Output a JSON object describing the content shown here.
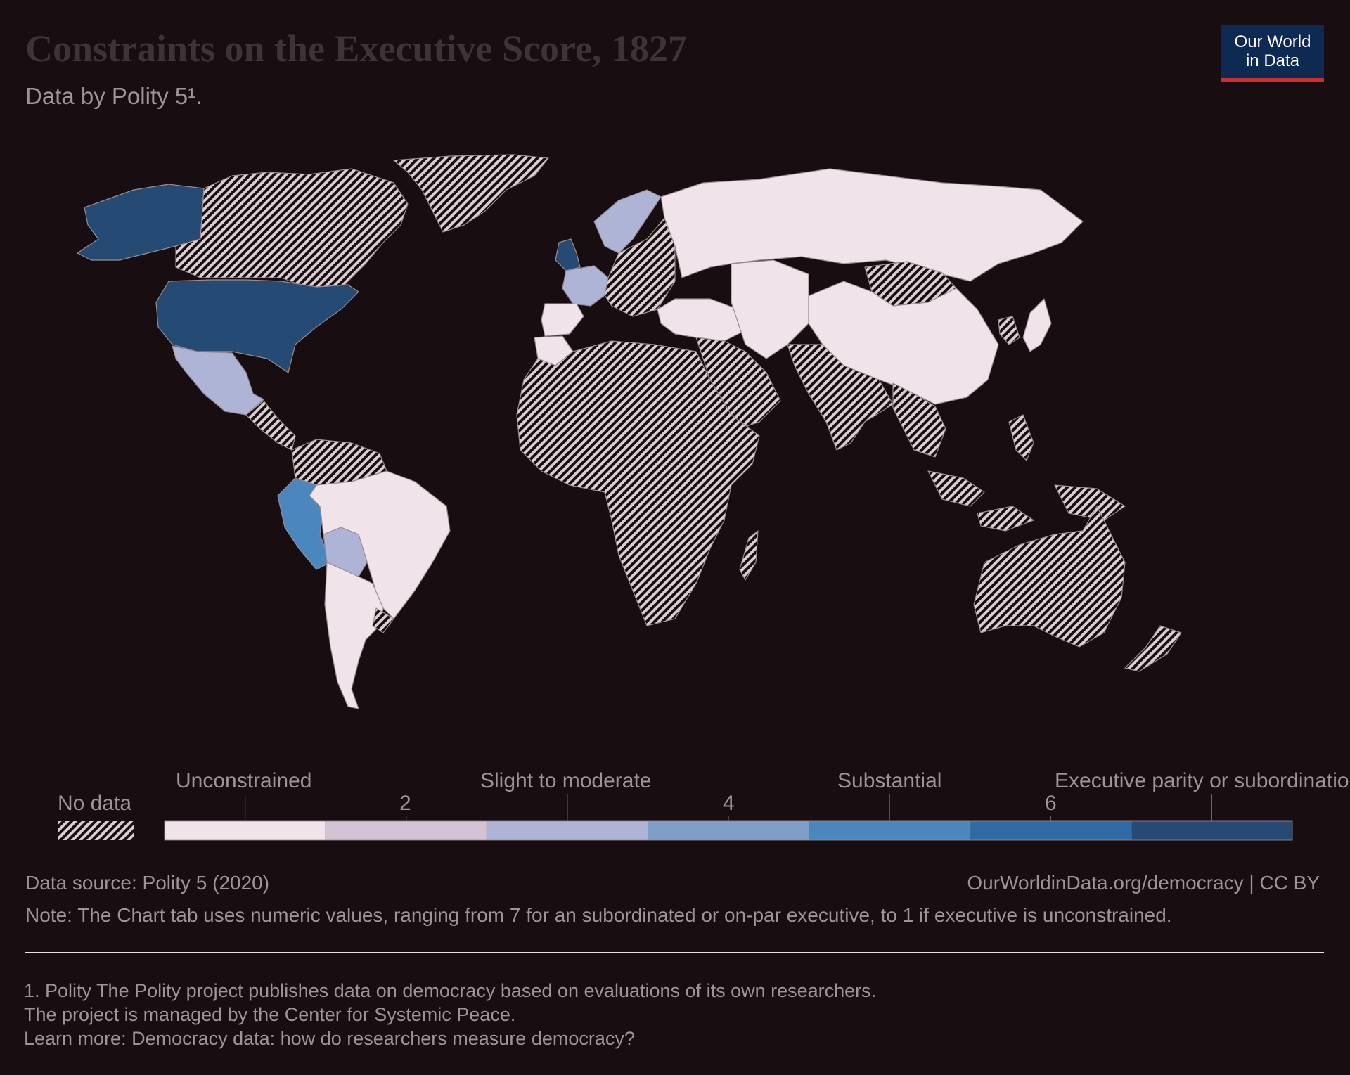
{
  "header": {
    "title": "Constraints on the Executive Score, 1827",
    "subtitle": "Data by Polity 5¹.",
    "logo_line1": "Our World",
    "logo_line2": "in Data"
  },
  "legend": {
    "no_data_label": "No data",
    "category_labels": [
      "Unconstrained",
      "Slight to moderate",
      "Substantial",
      "Executive parity or subordination"
    ],
    "tick_labels": [
      "2",
      "4",
      "6"
    ],
    "bin_colors": [
      "#f0e4ea",
      "#d4c3d3",
      "#adb4d6",
      "#7e9fc8",
      "#4b87bc",
      "#2f6aa3",
      "#254b74"
    ],
    "no_data_color": "#d9cfd2"
  },
  "map_data": {
    "type": "choropleth",
    "metric": "Constraints on the Executive Score",
    "year": 1827,
    "scale_min": 1,
    "scale_max": 7,
    "regions": [
      {
        "region": "United States",
        "category": "Executive parity or subordination",
        "color": "#254b74"
      },
      {
        "region": "Alaska (Russian America)",
        "category": "Executive parity or subordination",
        "color": "#254b74"
      },
      {
        "region": "United Kingdom",
        "category": "Executive parity or subordination",
        "color": "#254b74"
      },
      {
        "region": "Peru",
        "category": "Substantial",
        "color": "#4b87bc"
      },
      {
        "region": "Mexico",
        "category": "Slight to moderate",
        "color": "#adb4d6"
      },
      {
        "region": "Bolivia",
        "category": "Slight to moderate",
        "color": "#adb4d6"
      },
      {
        "region": "France",
        "category": "Slight to moderate",
        "color": "#adb4d6"
      },
      {
        "region": "Sweden / Norway",
        "category": "Slight to moderate",
        "color": "#adb4d6"
      },
      {
        "region": "Russia",
        "category": "Unconstrained",
        "color": "#f0e4ea"
      },
      {
        "region": "China",
        "category": "Unconstrained",
        "color": "#f0e4ea"
      },
      {
        "region": "Brazil",
        "category": "Unconstrained",
        "color": "#f0e4ea"
      },
      {
        "region": "Argentina / Chile",
        "category": "Unconstrained",
        "color": "#f0e4ea"
      },
      {
        "region": "Ottoman Empire",
        "category": "Unconstrained",
        "color": "#f0e4ea"
      },
      {
        "region": "Persia / Afghanistan",
        "category": "Unconstrained",
        "color": "#f0e4ea"
      },
      {
        "region": "Japan",
        "category": "Unconstrained",
        "color": "#f0e4ea"
      },
      {
        "region": "Spain / Portugal / Morocco",
        "category": "Unconstrained",
        "color": "#f0e4ea"
      },
      {
        "region": "Canada",
        "category": "No data"
      },
      {
        "region": "Africa",
        "category": "No data"
      },
      {
        "region": "India",
        "category": "No data"
      },
      {
        "region": "Australia",
        "category": "No data"
      },
      {
        "region": "Greenland",
        "category": "No data"
      },
      {
        "region": "Mongolia",
        "category": "No data"
      }
    ]
  },
  "footer": {
    "source": "Data source: Polity 5 (2020)",
    "url_license": "OurWorldinData.org/democracy | CC BY",
    "note": "Note: The Chart tab uses numeric values, ranging from 7 for an subordinated or on-par executive, to 1 if executive is unconstrained.",
    "footnote_line1": "1. Polity The Polity project publishes data on democracy based on evaluations of its own researchers.",
    "footnote_line2": "The project is managed by the Center for Systemic Peace.",
    "footnote_line3": "Learn more: Democracy data: how do researchers measure democracy?"
  }
}
